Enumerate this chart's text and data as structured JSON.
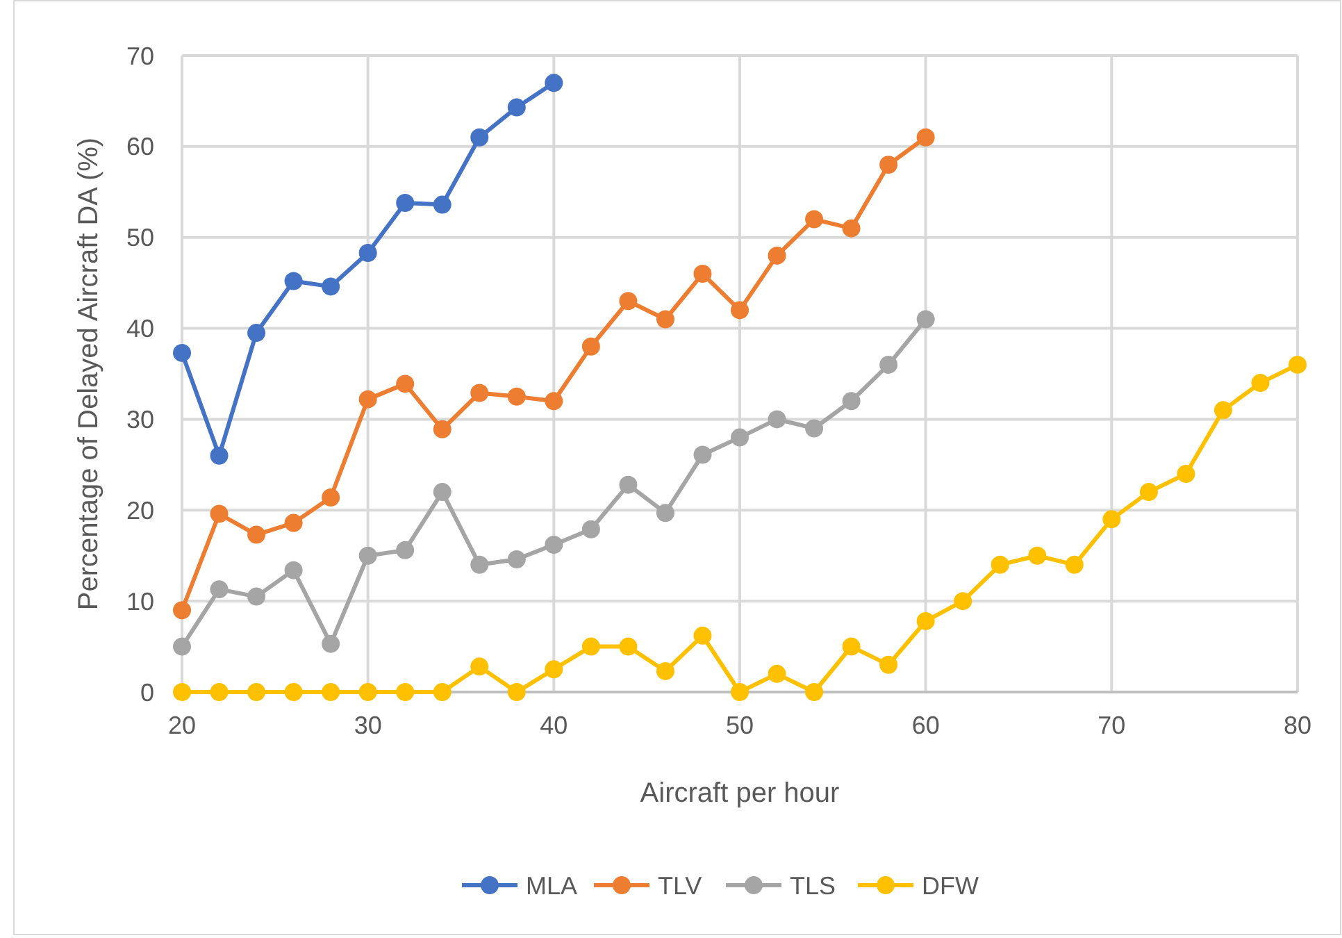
{
  "chart_data": {
    "type": "line",
    "xlabel": "Aircraft per hour",
    "ylabel": "Percentage of Delayed Aircraft DA (%)",
    "xlim": [
      20,
      80
    ],
    "xticks": [
      20,
      30,
      40,
      50,
      60,
      70,
      80
    ],
    "ylim": [
      0,
      70
    ],
    "yticks": [
      0,
      10,
      20,
      30,
      40,
      50,
      60,
      70
    ],
    "grid": true,
    "legend": "bottom",
    "marker": "circle",
    "line_style": "solid",
    "series": [
      {
        "name": "MLA",
        "color": "#4472c4",
        "x": [
          20,
          22,
          24,
          26,
          28,
          30,
          32,
          34,
          36,
          38,
          40
        ],
        "values": [
          37.3,
          26,
          39.5,
          45.2,
          44.6,
          48.3,
          53.8,
          53.6,
          61,
          64.3,
          67
        ]
      },
      {
        "name": "TLV",
        "color": "#ed7d31",
        "x": [
          20,
          22,
          24,
          26,
          28,
          30,
          32,
          34,
          36,
          38,
          40,
          42,
          44,
          46,
          48,
          50,
          52,
          54,
          56,
          58,
          60
        ],
        "values": [
          9,
          19.6,
          17.3,
          18.6,
          21.4,
          32.2,
          33.9,
          28.9,
          32.9,
          32.5,
          32,
          38,
          43,
          41,
          46,
          42,
          48,
          52,
          51,
          58,
          61
        ]
      },
      {
        "name": "TLS",
        "color": "#a5a5a5",
        "x": [
          20,
          22,
          24,
          26,
          28,
          30,
          32,
          34,
          36,
          38,
          40,
          42,
          44,
          46,
          48,
          50,
          52,
          54,
          56,
          58,
          60
        ],
        "values": [
          5,
          11.3,
          10.5,
          13.4,
          5.3,
          15,
          15.6,
          22,
          14,
          14.6,
          16.2,
          17.9,
          22.8,
          19.7,
          26.1,
          28,
          30,
          29,
          32,
          36,
          41
        ]
      },
      {
        "name": "DFW",
        "color": "#ffc000",
        "x": [
          20,
          22,
          24,
          26,
          28,
          30,
          32,
          34,
          36,
          38,
          40,
          42,
          44,
          46,
          48,
          50,
          52,
          54,
          56,
          58,
          60,
          62,
          64,
          66,
          68,
          70,
          72,
          74,
          76,
          78,
          80
        ],
        "values": [
          0,
          0,
          0,
          0,
          0,
          0,
          0,
          0,
          2.8,
          0,
          2.5,
          5,
          5,
          2.3,
          6.2,
          0,
          2,
          0,
          5,
          3,
          7.8,
          10,
          14,
          15,
          14,
          19,
          22,
          24,
          31,
          34,
          36
        ]
      }
    ]
  }
}
